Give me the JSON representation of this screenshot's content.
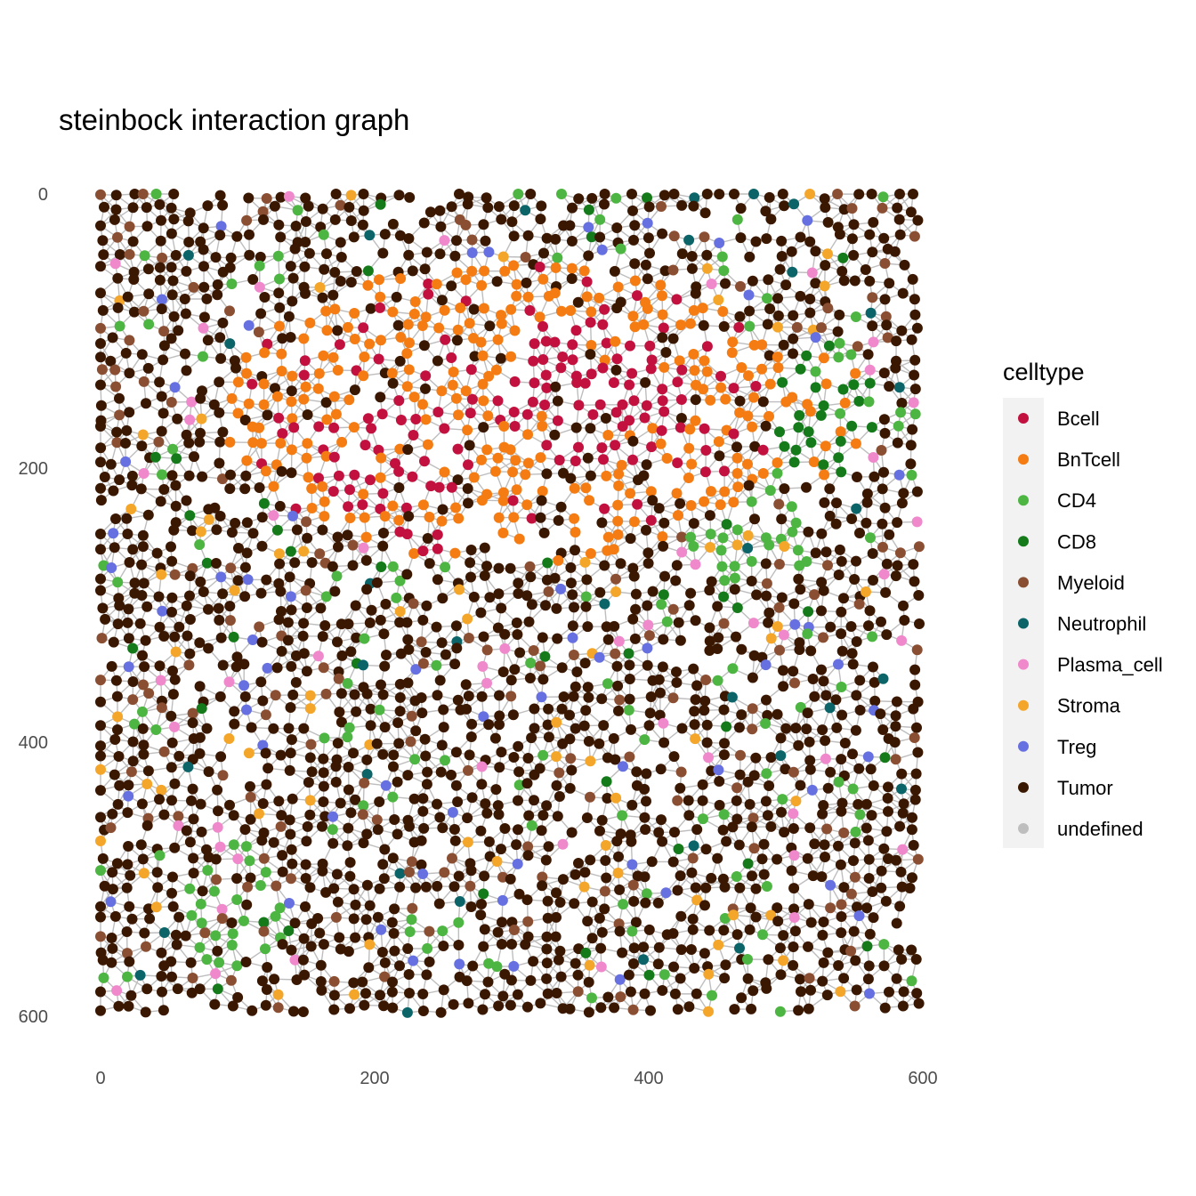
{
  "chart_data": {
    "type": "scatter",
    "title": "steinbock interaction graph",
    "xlabel": "",
    "ylabel": "",
    "xlim": [
      0,
      600
    ],
    "ylim": [
      600,
      0
    ],
    "y_reversed": true,
    "x_ticks": [
      0,
      200,
      400,
      600
    ],
    "y_ticks": [
      0,
      200,
      400,
      600
    ],
    "grid": false,
    "edges_color": "#bebebe",
    "legend": {
      "title": "celltype",
      "position": "right",
      "entries": [
        {
          "name": "Bcell",
          "color": "#c2113f"
        },
        {
          "name": "BnTcell",
          "color": "#f47c12"
        },
        {
          "name": "CD4",
          "color": "#4db541"
        },
        {
          "name": "CD8",
          "color": "#147a1a"
        },
        {
          "name": "Myeloid",
          "color": "#8a4f33"
        },
        {
          "name": "Neutrophil",
          "color": "#0b6468"
        },
        {
          "name": "Plasma_cell",
          "color": "#f088cc"
        },
        {
          "name": "Stroma",
          "color": "#f4a62a"
        },
        {
          "name": "Treg",
          "color": "#6670e0"
        },
        {
          "name": "Tumor",
          "color": "#3a1700"
        },
        {
          "name": "undefined",
          "color": "#bebebe"
        }
      ]
    },
    "regions": [
      {
        "celltype": "Bcell",
        "cx": 210,
        "cy": 190,
        "rx": 55,
        "ry": 45
      },
      {
        "celltype": "Bcell",
        "cx": 360,
        "cy": 150,
        "rx": 70,
        "ry": 55
      },
      {
        "celltype": "BnTcell",
        "cx": 300,
        "cy": 160,
        "rx": 210,
        "ry": 110
      },
      {
        "celltype": "CD8",
        "cx": 530,
        "cy": 160,
        "rx": 40,
        "ry": 50
      },
      {
        "celltype": "CD4",
        "cx": 480,
        "cy": 250,
        "rx": 50,
        "ry": 40
      },
      {
        "celltype": "CD4",
        "cx": 100,
        "cy": 520,
        "rx": 40,
        "ry": 50
      }
    ]
  }
}
